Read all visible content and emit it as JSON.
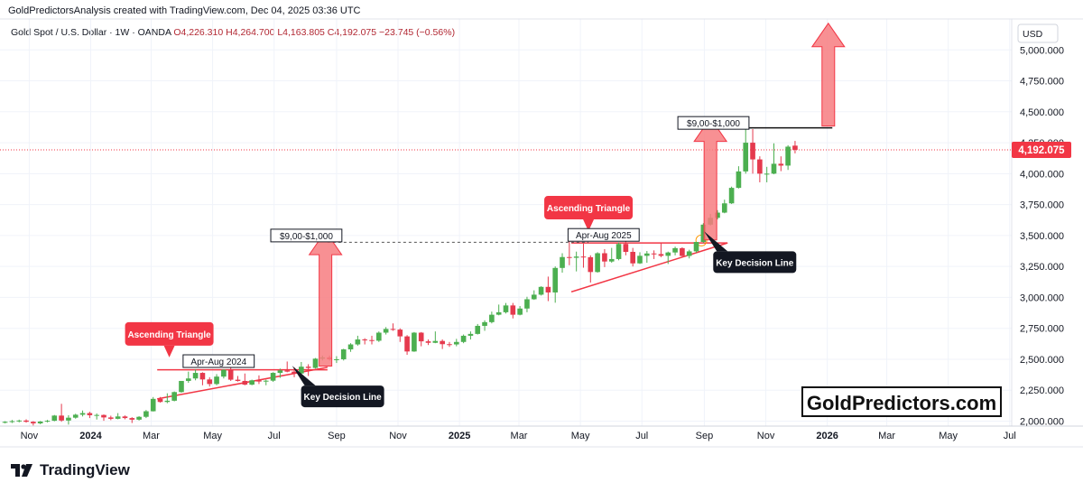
{
  "header": {
    "text": "GoldPredictorsAnalysis created with TradingView.com, Dec 04, 2025 03:36 UTC"
  },
  "legend": {
    "symbol": "Gold Spot / U.S. Dollar · 1W · OANDA",
    "ohlc": "O4,226.310 H4,264.700 L4,163.805 C4,192.075 −23.745 (−0.56%)"
  },
  "currency": "USD",
  "last_price_label": "4,192.075",
  "watermark": "GoldPredictors.com",
  "brand": "TradingView",
  "colors": {
    "up": "#4caf50",
    "down": "#e5394d",
    "annotation_red": "#f23645",
    "arrow": "#f77c80"
  },
  "chart_data": {
    "type": "candlestick",
    "title": "Gold Spot / U.S. Dollar · 1W · OANDA",
    "y_axis": {
      "ticks": [
        2000,
        2250,
        2500,
        2750,
        3000,
        3250,
        3500,
        3750,
        4000,
        4250,
        4500,
        4750,
        5000
      ],
      "tick_labels": [
        "2,000.000",
        "2,250.000",
        "2,500.000",
        "2,750.000",
        "3,000.000",
        "3,250.000",
        "3,500.000",
        "3,750.000",
        "4,000.000",
        "4,250.000",
        "4,500.000",
        "4,750.000",
        "5,000.000"
      ],
      "ylim": [
        1960,
        5250
      ]
    },
    "x_axis": {
      "ticks": [
        {
          "date": "2023-11-01",
          "label": "Nov"
        },
        {
          "date": "2024-01-01",
          "label": "2024"
        },
        {
          "date": "2024-03-01",
          "label": "Mar"
        },
        {
          "date": "2024-05-01",
          "label": "May"
        },
        {
          "date": "2024-07-01",
          "label": "Jul"
        },
        {
          "date": "2024-09-01",
          "label": "Sep"
        },
        {
          "date": "2024-11-01",
          "label": "Nov"
        },
        {
          "date": "2025-01-01",
          "label": "2025"
        },
        {
          "date": "2025-03-01",
          "label": "Mar"
        },
        {
          "date": "2025-05-01",
          "label": "May"
        },
        {
          "date": "2025-07-01",
          "label": "Jul"
        },
        {
          "date": "2025-09-01",
          "label": "Sep"
        },
        {
          "date": "2025-11-01",
          "label": "Nov"
        },
        {
          "date": "2026-01-01",
          "label": "2026"
        },
        {
          "date": "2026-03-01",
          "label": "Mar"
        },
        {
          "date": "2026-05-01",
          "label": "May"
        },
        {
          "date": "2026-07-01",
          "label": "Jul"
        }
      ],
      "xlim": [
        "2023-10-03",
        "2026-07-03"
      ]
    },
    "last_price": 4192.075,
    "candles": [
      {
        "t": "2023-10-08",
        "o": 1987,
        "h": 2000,
        "l": 1982,
        "c": 1995
      },
      {
        "t": "2023-10-15",
        "o": 1995,
        "h": 2010,
        "l": 1985,
        "c": 2000
      },
      {
        "t": "2023-10-22",
        "o": 2000,
        "h": 2012,
        "l": 1990,
        "c": 2005
      },
      {
        "t": "2023-10-29",
        "o": 2005,
        "h": 2015,
        "l": 1988,
        "c": 1995
      },
      {
        "t": "2023-11-05",
        "o": 1995,
        "h": 2000,
        "l": 1965,
        "c": 1982
      },
      {
        "t": "2023-11-12",
        "o": 1982,
        "h": 2001,
        "l": 1975,
        "c": 1997
      },
      {
        "t": "2023-11-19",
        "o": 1997,
        "h": 2010,
        "l": 1990,
        "c": 2003
      },
      {
        "t": "2023-11-26",
        "o": 2003,
        "h": 2050,
        "l": 1999,
        "c": 2045
      },
      {
        "t": "2023-12-03",
        "o": 2045,
        "h": 2140,
        "l": 1995,
        "c": 2005
      },
      {
        "t": "2023-12-10",
        "o": 2005,
        "h": 2048,
        "l": 1972,
        "c": 2028
      },
      {
        "t": "2023-12-17",
        "o": 2028,
        "h": 2060,
        "l": 2020,
        "c": 2052
      },
      {
        "t": "2023-12-24",
        "o": 2052,
        "h": 2086,
        "l": 2038,
        "c": 2065
      },
      {
        "t": "2023-12-31",
        "o": 2065,
        "h": 2076,
        "l": 2025,
        "c": 2048
      },
      {
        "t": "2024-01-07",
        "o": 2048,
        "h": 2062,
        "l": 2013,
        "c": 2050
      },
      {
        "t": "2024-01-14",
        "o": 2050,
        "h": 2054,
        "l": 2003,
        "c": 2030
      },
      {
        "t": "2024-01-21",
        "o": 2030,
        "h": 2044,
        "l": 2008,
        "c": 2019
      },
      {
        "t": "2024-01-28",
        "o": 2019,
        "h": 2065,
        "l": 2015,
        "c": 2038
      },
      {
        "t": "2024-02-04",
        "o": 2038,
        "h": 2046,
        "l": 2015,
        "c": 2025
      },
      {
        "t": "2024-02-11",
        "o": 2025,
        "h": 2032,
        "l": 1985,
        "c": 2012
      },
      {
        "t": "2024-02-18",
        "o": 2012,
        "h": 2040,
        "l": 2005,
        "c": 2035
      },
      {
        "t": "2024-02-25",
        "o": 2035,
        "h": 2090,
        "l": 2025,
        "c": 2080
      },
      {
        "t": "2024-03-03",
        "o": 2080,
        "h": 2195,
        "l": 2078,
        "c": 2180
      },
      {
        "t": "2024-03-10",
        "o": 2180,
        "h": 2195,
        "l": 2150,
        "c": 2155
      },
      {
        "t": "2024-03-17",
        "o": 2155,
        "h": 2225,
        "l": 2145,
        "c": 2165
      },
      {
        "t": "2024-03-24",
        "o": 2165,
        "h": 2240,
        "l": 2160,
        "c": 2235
      },
      {
        "t": "2024-03-31",
        "o": 2235,
        "h": 2310,
        "l": 2230,
        "c": 2325
      },
      {
        "t": "2024-04-07",
        "o": 2325,
        "h": 2400,
        "l": 2310,
        "c": 2345
      },
      {
        "t": "2024-04-14",
        "o": 2345,
        "h": 2420,
        "l": 2330,
        "c": 2390
      },
      {
        "t": "2024-04-21",
        "o": 2390,
        "h": 2395,
        "l": 2290,
        "c": 2337
      },
      {
        "t": "2024-04-28",
        "o": 2337,
        "h": 2355,
        "l": 2280,
        "c": 2300
      },
      {
        "t": "2024-05-05",
        "o": 2300,
        "h": 2380,
        "l": 2290,
        "c": 2360
      },
      {
        "t": "2024-05-12",
        "o": 2360,
        "h": 2420,
        "l": 2345,
        "c": 2415
      },
      {
        "t": "2024-05-19",
        "o": 2415,
        "h": 2450,
        "l": 2325,
        "c": 2335
      },
      {
        "t": "2024-05-26",
        "o": 2335,
        "h": 2365,
        "l": 2320,
        "c": 2325
      },
      {
        "t": "2024-06-02",
        "o": 2325,
        "h": 2385,
        "l": 2290,
        "c": 2295
      },
      {
        "t": "2024-06-09",
        "o": 2295,
        "h": 2335,
        "l": 2290,
        "c": 2330
      },
      {
        "t": "2024-06-16",
        "o": 2330,
        "h": 2370,
        "l": 2300,
        "c": 2320
      },
      {
        "t": "2024-06-23",
        "o": 2320,
        "h": 2335,
        "l": 2290,
        "c": 2327
      },
      {
        "t": "2024-06-30",
        "o": 2327,
        "h": 2395,
        "l": 2318,
        "c": 2390
      },
      {
        "t": "2024-07-07",
        "o": 2390,
        "h": 2425,
        "l": 2350,
        "c": 2410
      },
      {
        "t": "2024-07-14",
        "o": 2410,
        "h": 2482,
        "l": 2395,
        "c": 2400
      },
      {
        "t": "2024-07-21",
        "o": 2400,
        "h": 2435,
        "l": 2355,
        "c": 2385
      },
      {
        "t": "2024-07-28",
        "o": 2385,
        "h": 2478,
        "l": 2380,
        "c": 2440
      },
      {
        "t": "2024-08-04",
        "o": 2440,
        "h": 2460,
        "l": 2365,
        "c": 2430
      },
      {
        "t": "2024-08-11",
        "o": 2430,
        "h": 2510,
        "l": 2425,
        "c": 2505
      },
      {
        "t": "2024-08-18",
        "o": 2505,
        "h": 2530,
        "l": 2490,
        "c": 2515
      },
      {
        "t": "2024-08-25",
        "o": 2515,
        "h": 2530,
        "l": 2490,
        "c": 2500
      },
      {
        "t": "2024-09-01",
        "o": 2500,
        "h": 2525,
        "l": 2470,
        "c": 2500
      },
      {
        "t": "2024-09-08",
        "o": 2500,
        "h": 2585,
        "l": 2490,
        "c": 2580
      },
      {
        "t": "2024-09-15",
        "o": 2580,
        "h": 2630,
        "l": 2560,
        "c": 2620
      },
      {
        "t": "2024-09-22",
        "o": 2620,
        "h": 2690,
        "l": 2610,
        "c": 2660
      },
      {
        "t": "2024-09-29",
        "o": 2660,
        "h": 2670,
        "l": 2620,
        "c": 2655
      },
      {
        "t": "2024-10-06",
        "o": 2655,
        "h": 2690,
        "l": 2620,
        "c": 2650
      },
      {
        "t": "2024-10-13",
        "o": 2650,
        "h": 2725,
        "l": 2640,
        "c": 2715
      },
      {
        "t": "2024-10-20",
        "o": 2715,
        "h": 2760,
        "l": 2700,
        "c": 2745
      },
      {
        "t": "2024-10-27",
        "o": 2745,
        "h": 2790,
        "l": 2730,
        "c": 2740
      },
      {
        "t": "2024-11-03",
        "o": 2740,
        "h": 2750,
        "l": 2640,
        "c": 2685
      },
      {
        "t": "2024-11-10",
        "o": 2685,
        "h": 2695,
        "l": 2536,
        "c": 2563
      },
      {
        "t": "2024-11-17",
        "o": 2563,
        "h": 2720,
        "l": 2560,
        "c": 2715
      },
      {
        "t": "2024-11-24",
        "o": 2715,
        "h": 2720,
        "l": 2605,
        "c": 2645
      },
      {
        "t": "2024-12-01",
        "o": 2645,
        "h": 2660,
        "l": 2615,
        "c": 2633
      },
      {
        "t": "2024-12-08",
        "o": 2633,
        "h": 2725,
        "l": 2630,
        "c": 2648
      },
      {
        "t": "2024-12-15",
        "o": 2648,
        "h": 2660,
        "l": 2583,
        "c": 2622
      },
      {
        "t": "2024-12-22",
        "o": 2622,
        "h": 2640,
        "l": 2600,
        "c": 2620
      },
      {
        "t": "2024-12-29",
        "o": 2620,
        "h": 2665,
        "l": 2605,
        "c": 2640
      },
      {
        "t": "2025-01-05",
        "o": 2640,
        "h": 2700,
        "l": 2630,
        "c": 2690
      },
      {
        "t": "2025-01-12",
        "o": 2690,
        "h": 2725,
        "l": 2660,
        "c": 2705
      },
      {
        "t": "2025-01-19",
        "o": 2705,
        "h": 2785,
        "l": 2700,
        "c": 2770
      },
      {
        "t": "2025-01-26",
        "o": 2770,
        "h": 2815,
        "l": 2730,
        "c": 2800
      },
      {
        "t": "2025-02-02",
        "o": 2800,
        "h": 2885,
        "l": 2790,
        "c": 2860
      },
      {
        "t": "2025-02-09",
        "o": 2860,
        "h": 2942,
        "l": 2855,
        "c": 2880
      },
      {
        "t": "2025-02-16",
        "o": 2880,
        "h": 2955,
        "l": 2870,
        "c": 2935
      },
      {
        "t": "2025-02-23",
        "o": 2935,
        "h": 2955,
        "l": 2830,
        "c": 2860
      },
      {
        "t": "2025-03-02",
        "o": 2860,
        "h": 2930,
        "l": 2855,
        "c": 2910
      },
      {
        "t": "2025-03-09",
        "o": 2910,
        "h": 3005,
        "l": 2880,
        "c": 2985
      },
      {
        "t": "2025-03-16",
        "o": 2985,
        "h": 3057,
        "l": 2980,
        "c": 3022
      },
      {
        "t": "2025-03-23",
        "o": 3022,
        "h": 3090,
        "l": 3015,
        "c": 3085
      },
      {
        "t": "2025-03-30",
        "o": 3085,
        "h": 3168,
        "l": 2970,
        "c": 3040
      },
      {
        "t": "2025-04-06",
        "o": 3040,
        "h": 3250,
        "l": 2957,
        "c": 3238
      },
      {
        "t": "2025-04-13",
        "o": 3238,
        "h": 3357,
        "l": 3200,
        "c": 3326
      },
      {
        "t": "2025-04-20",
        "o": 3326,
        "h": 3500,
        "l": 3260,
        "c": 3320
      },
      {
        "t": "2025-04-27",
        "o": 3320,
        "h": 3370,
        "l": 3210,
        "c": 3330
      },
      {
        "t": "2025-05-04",
        "o": 3330,
        "h": 3435,
        "l": 3240,
        "c": 3325
      },
      {
        "t": "2025-05-11",
        "o": 3325,
        "h": 3340,
        "l": 3120,
        "c": 3205
      },
      {
        "t": "2025-05-18",
        "o": 3205,
        "h": 3365,
        "l": 3200,
        "c": 3357
      },
      {
        "t": "2025-05-25",
        "o": 3357,
        "h": 3390,
        "l": 3245,
        "c": 3290
      },
      {
        "t": "2025-06-01",
        "o": 3290,
        "h": 3400,
        "l": 3280,
        "c": 3310
      },
      {
        "t": "2025-06-08",
        "o": 3310,
        "h": 3445,
        "l": 3300,
        "c": 3432
      },
      {
        "t": "2025-06-15",
        "o": 3432,
        "h": 3452,
        "l": 3340,
        "c": 3368
      },
      {
        "t": "2025-06-22",
        "o": 3368,
        "h": 3400,
        "l": 3250,
        "c": 3275
      },
      {
        "t": "2025-06-29",
        "o": 3275,
        "h": 3365,
        "l": 3270,
        "c": 3336
      },
      {
        "t": "2025-07-06",
        "o": 3336,
        "h": 3375,
        "l": 3280,
        "c": 3355
      },
      {
        "t": "2025-07-13",
        "o": 3355,
        "h": 3380,
        "l": 3310,
        "c": 3350
      },
      {
        "t": "2025-07-20",
        "o": 3350,
        "h": 3440,
        "l": 3325,
        "c": 3336
      },
      {
        "t": "2025-07-27",
        "o": 3336,
        "h": 3370,
        "l": 3270,
        "c": 3363
      },
      {
        "t": "2025-08-03",
        "o": 3363,
        "h": 3410,
        "l": 3340,
        "c": 3398
      },
      {
        "t": "2025-08-10",
        "o": 3398,
        "h": 3405,
        "l": 3330,
        "c": 3335
      },
      {
        "t": "2025-08-17",
        "o": 3335,
        "h": 3385,
        "l": 3315,
        "c": 3372
      },
      {
        "t": "2025-08-24",
        "o": 3372,
        "h": 3450,
        "l": 3360,
        "c": 3448
      },
      {
        "t": "2025-08-31",
        "o": 3448,
        "h": 3600,
        "l": 3440,
        "c": 3588
      },
      {
        "t": "2025-09-07",
        "o": 3588,
        "h": 3675,
        "l": 3580,
        "c": 3643
      },
      {
        "t": "2025-09-14",
        "o": 3643,
        "h": 3705,
        "l": 3630,
        "c": 3685
      },
      {
        "t": "2025-09-21",
        "o": 3685,
        "h": 3790,
        "l": 3680,
        "c": 3760
      },
      {
        "t": "2025-09-28",
        "o": 3760,
        "h": 3895,
        "l": 3755,
        "c": 3885
      },
      {
        "t": "2025-10-05",
        "o": 3885,
        "h": 4060,
        "l": 3880,
        "c": 4018
      },
      {
        "t": "2025-10-12",
        "o": 4018,
        "h": 4380,
        "l": 4000,
        "c": 4250
      },
      {
        "t": "2025-10-19",
        "o": 4250,
        "h": 4360,
        "l": 4000,
        "c": 4115
      },
      {
        "t": "2025-10-26",
        "o": 4115,
        "h": 4140,
        "l": 3930,
        "c": 4000
      },
      {
        "t": "2025-11-02",
        "o": 4000,
        "h": 4055,
        "l": 3930,
        "c": 4000
      },
      {
        "t": "2025-11-09",
        "o": 4000,
        "h": 4245,
        "l": 3995,
        "c": 4080
      },
      {
        "t": "2025-11-16",
        "o": 4080,
        "h": 4140,
        "l": 4020,
        "c": 4065
      },
      {
        "t": "2025-11-23",
        "o": 4065,
        "h": 4230,
        "l": 4030,
        "c": 4218
      },
      {
        "t": "2025-11-30",
        "o": 4226.31,
        "h": 4264.7,
        "l": 4163.805,
        "c": 4192.075
      }
    ],
    "annotations": [
      {
        "kind": "label_red",
        "text": "Ascending Triangle",
        "x": "2024-03-19",
        "y": 2705
      },
      {
        "kind": "label_red",
        "text": "Ascending Triangle",
        "x": "2025-05-09",
        "y": 3725
      },
      {
        "kind": "label_dark",
        "text": "Key Decision Line",
        "x": "2024-09-07",
        "y": 2200
      },
      {
        "kind": "label_dark",
        "text": "Key Decision Line",
        "x": "2025-10-21",
        "y": 3285
      },
      {
        "kind": "box_text",
        "text": "Apr-Aug 2024",
        "x": "2024-05-07",
        "y": 2485
      },
      {
        "kind": "box_text",
        "text": "Apr-Aug 2025",
        "x": "2025-05-24",
        "y": 3505
      },
      {
        "kind": "box_text",
        "text": "$9,00-$1,000",
        "x": "2024-08-02",
        "y": 3500
      },
      {
        "kind": "box_text",
        "text": "$9,00-$1,000",
        "x": "2025-09-10",
        "y": 4410
      }
    ]
  }
}
